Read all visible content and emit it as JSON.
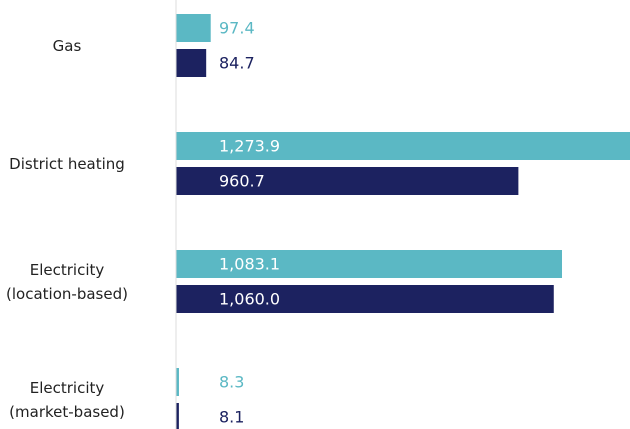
{
  "chart_data": {
    "type": "barh",
    "categories": [
      "Gas",
      "District heating",
      "Electricity\n(location-based)",
      "Electricity\n(market-based)"
    ],
    "series": [
      {
        "color": "#5bb8c4",
        "values": [
          97.4,
          1273.9,
          1083.1,
          8.3
        ],
        "value_labels": [
          "97.4",
          "1,273.9",
          "1,083.1",
          "8.3"
        ]
      },
      {
        "color": "#1c2260",
        "values": [
          84.7,
          960.7,
          1060.0,
          8.1
        ],
        "value_labels": [
          "84.7",
          "960.7",
          "1,060.0",
          "8.1"
        ]
      }
    ]
  }
}
